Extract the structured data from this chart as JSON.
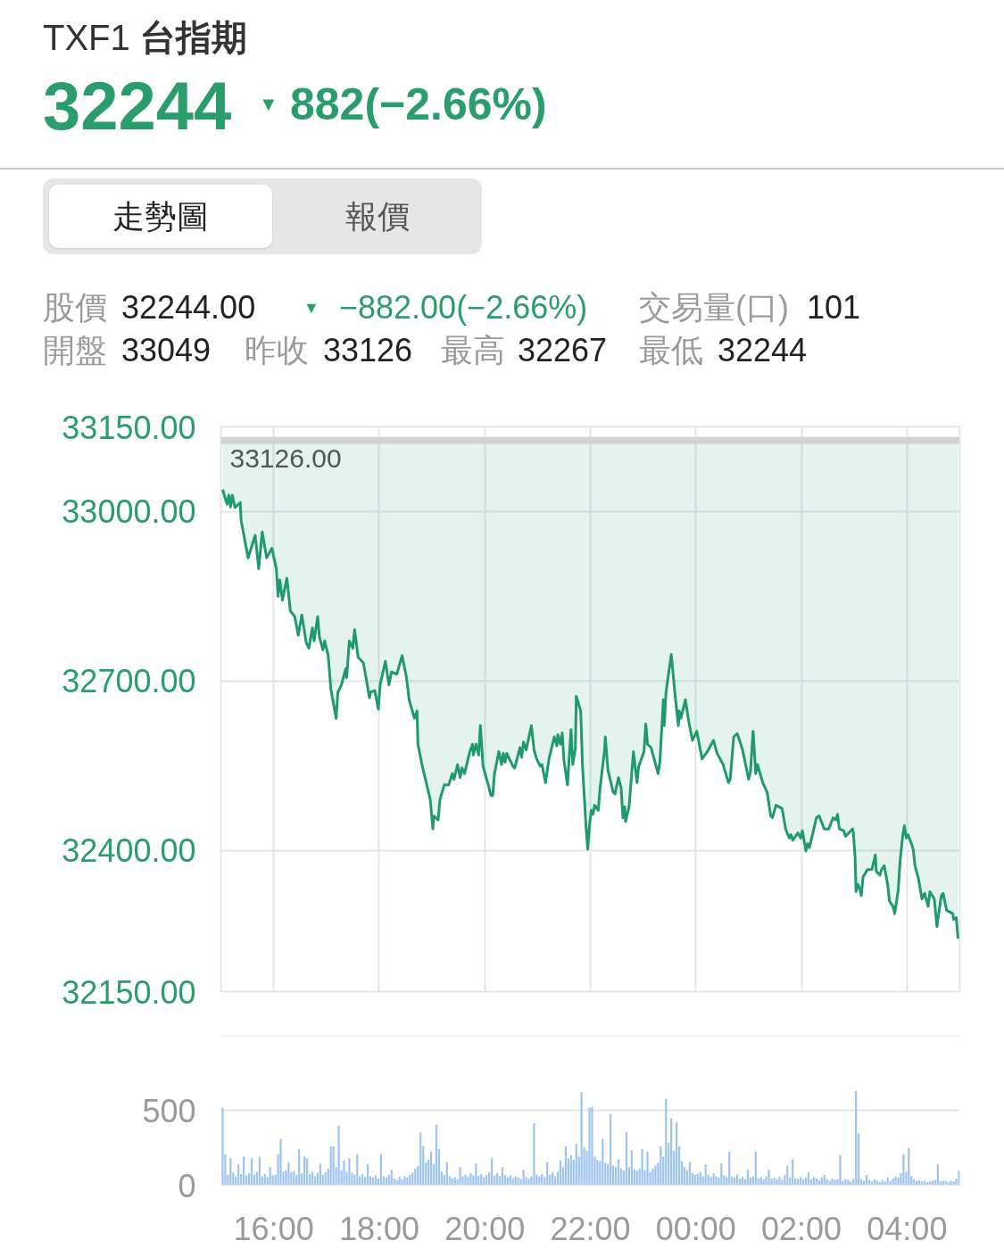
{
  "chart_data": [
    {
      "type": "line",
      "title": "TXF1 台指期",
      "annotations": [
        "32244",
        "▼",
        "882(−2.66%)",
        "走勢圖",
        "報價",
        "股價",
        "32244.00",
        "▼",
        "−882.00(−2.66%)",
        "交易量(口)",
        "101",
        "開盤",
        "33049",
        "昨收",
        "33126",
        "最高",
        "32267",
        "最低",
        "32244"
      ],
      "x": [
        "2000-01-01T15:02",
        "2000-01-01T15:07",
        "2000-01-01T15:09",
        "2000-01-01T15:11",
        "2000-01-01T15:13",
        "2000-01-01T15:16",
        "2000-01-01T15:22",
        "2000-01-01T15:23",
        "2000-01-01T15:31",
        "2000-01-01T15:39",
        "2000-01-01T15:43",
        "2000-01-01T15:47",
        "2000-01-01T15:52",
        "2000-01-01T15:58",
        "2000-01-01T16:03",
        "2000-01-01T16:05",
        "2000-01-01T16:07",
        "2000-01-01T16:10",
        "2000-01-01T16:15",
        "2000-01-01T16:19",
        "2000-01-01T16:24",
        "2000-01-01T16:28",
        "2000-01-01T16:32",
        "2000-01-01T16:37",
        "2000-01-01T16:40",
        "2000-01-01T16:44",
        "2000-01-01T16:46",
        "2000-01-01T16:50",
        "2000-01-01T16:52",
        "2000-01-01T16:56",
        "2000-01-01T16:58",
        "2000-01-01T17:02",
        "2000-01-01T17:05",
        "2000-01-01T17:11",
        "2000-01-01T17:13",
        "2000-01-01T17:17",
        "2000-01-01T17:22",
        "2000-01-01T17:23",
        "2000-01-01T17:26",
        "2000-01-01T17:30",
        "2000-01-01T17:32",
        "2000-01-01T17:36",
        "2000-01-01T17:42",
        "2000-01-01T17:49",
        "2000-01-01T17:50",
        "2000-01-01T17:55",
        "2000-01-01T17:59",
        "2000-01-01T18:01",
        "2000-01-01T18:07",
        "2000-01-01T18:11",
        "2000-01-01T18:14",
        "2000-01-01T18:20",
        "2000-01-01T18:26",
        "2000-01-01T18:31",
        "2000-01-01T18:34",
        "2000-01-01T18:40",
        "2000-01-01T18:43",
        "2000-01-01T18:44",
        "2000-01-01T18:49",
        "2000-01-01T18:55",
        "2000-01-01T18:58",
        "2000-01-01T19:01",
        "2000-01-01T19:02",
        "2000-01-01T19:07",
        "2000-01-01T19:09",
        "2000-01-01T19:14",
        "2000-01-01T19:19",
        "2000-01-01T19:23",
        "2000-01-01T19:25",
        "2000-01-01T19:29",
        "2000-01-01T19:32",
        "2000-01-01T19:34",
        "2000-01-01T19:37",
        "2000-01-01T19:43",
        "2000-01-01T19:46",
        "2000-01-01T19:47",
        "2000-01-01T19:50",
        "2000-01-01T19:53",
        "2000-01-01T19:55",
        "2000-01-01T19:58",
        "2000-01-01T20:04",
        "2000-01-01T20:07",
        "2000-01-01T20:09",
        "2000-01-01T20:11",
        "2000-01-01T20:16",
        "2000-01-01T20:19",
        "2000-01-01T20:21",
        "2000-01-01T20:23",
        "2000-01-01T20:25",
        "2000-01-01T20:32",
        "2000-01-01T20:34",
        "2000-01-01T20:40",
        "2000-01-01T20:42",
        "2000-01-01T20:44",
        "2000-01-01T20:47",
        "2000-01-01T20:53",
        "2000-01-01T20:56",
        "2000-01-01T20:59",
        "2000-01-01T21:03",
        "2000-01-01T21:05",
        "2000-01-01T21:09",
        "2000-01-01T21:13",
        "2000-01-01T21:17",
        "2000-01-01T21:19",
        "2000-01-01T21:22",
        "2000-01-01T21:23",
        "2000-01-01T21:26",
        "2000-01-01T21:28",
        "2000-01-01T21:30",
        "2000-01-01T21:34",
        "2000-01-01T21:38",
        "2000-01-01T21:40",
        "2000-01-01T21:43",
        "2000-01-01T21:44",
        "2000-01-01T21:49",
        "2000-01-01T21:51",
        "2000-01-01T21:55",
        "2000-01-01T21:57",
        "2000-01-01T21:59",
        "2000-01-01T22:01",
        "2000-01-01T22:03",
        "2000-01-01T22:05",
        "2000-01-01T22:09",
        "2000-01-01T22:11",
        "2000-01-01T22:16",
        "2000-01-01T22:17",
        "2000-01-01T22:20",
        "2000-01-01T22:26",
        "2000-01-01T22:28",
        "2000-01-01T22:32",
        "2000-01-01T22:35",
        "2000-01-01T22:37",
        "2000-01-01T22:39",
        "2000-01-01T22:40",
        "2000-01-01T22:44",
        "2000-01-01T22:49",
        "2000-01-01T22:53",
        "2000-01-01T22:55",
        "2000-01-01T23:01",
        "2000-01-01T23:03",
        "2000-01-01T23:05",
        "2000-01-01T23:09",
        "2000-01-01T23:17",
        "2000-01-01T23:19",
        "2000-01-01T23:23",
        "2000-01-01T23:24",
        "2000-01-01T23:26",
        "2000-01-01T23:32",
        "2000-01-01T23:36",
        "2000-01-01T23:40",
        "2000-01-01T23:41",
        "2000-01-01T23:43",
        "2000-01-01T23:48",
        "2000-01-01T23:52",
        "2000-01-01T23:56",
        "2000-01-02T00:01",
        "2000-01-02T00:07",
        "2000-01-02T00:13",
        "2000-01-02T00:20",
        "2000-01-02T00:24",
        "2000-01-02T00:31",
        "2000-01-02T00:32",
        "2000-01-02T00:37",
        "2000-01-02T00:39",
        "2000-01-02T00:43",
        "2000-01-02T00:47",
        "2000-01-02T00:53",
        "2000-01-02T01:00",
        "2000-01-02T01:02",
        "2000-01-02T01:05",
        "2000-01-02T01:08",
        "2000-01-02T01:10",
        "2000-01-02T01:16",
        "2000-01-02T01:21",
        "2000-01-02T01:25",
        "2000-01-02T01:27",
        "2000-01-02T01:31",
        "2000-01-02T01:38",
        "2000-01-02T01:42",
        "2000-01-02T01:46",
        "2000-01-02T01:48",
        "2000-01-02T01:50",
        "2000-01-02T01:56",
        "2000-01-02T01:59",
        "2000-01-02T02:01",
        "2000-01-02T02:05",
        "2000-01-02T02:07",
        "2000-01-02T02:09",
        "2000-01-02T02:13",
        "2000-01-02T02:17",
        "2000-01-02T02:20",
        "2000-01-02T02:26",
        "2000-01-02T02:31",
        "2000-01-02T02:36",
        "2000-01-02T02:39",
        "2000-01-02T02:41",
        "2000-01-02T02:43",
        "2000-01-02T02:48",
        "2000-01-02T02:50",
        "2000-01-02T02:58",
        "2000-01-02T02:59",
        "2000-01-02T03:01",
        "2000-01-02T03:02",
        "2000-01-02T03:04",
        "2000-01-02T03:06",
        "2000-01-02T03:08",
        "2000-01-02T03:10",
        "2000-01-02T03:15",
        "2000-01-02T03:20",
        "2000-01-02T03:22",
        "2000-01-02T03:24",
        "2000-01-02T03:25",
        "2000-01-02T03:29",
        "2000-01-02T03:31",
        "2000-01-02T03:34",
        "2000-01-02T03:38",
        "2000-01-02T03:40",
        "2000-01-02T03:44",
        "2000-01-02T03:46",
        "2000-01-02T03:50",
        "2000-01-02T03:52",
        "2000-01-02T03:55",
        "2000-01-02T03:57",
        "2000-01-02T03:59",
        "2000-01-02T04:01",
        "2000-01-02T04:05",
        "2000-01-02T04:07",
        "2000-01-02T04:09",
        "2000-01-02T04:13",
        "2000-01-02T04:17",
        "2000-01-02T04:20",
        "2000-01-02T04:24",
        "2000-01-02T04:26",
        "2000-01-02T04:31",
        "2000-01-02T04:34",
        "2000-01-02T04:36",
        "2000-01-02T04:39",
        "2000-01-02T04:41",
        "2000-01-02T04:45",
        "2000-01-02T04:52",
        "2000-01-02T04:53",
        "2000-01-02T04:56",
        "2000-01-02T04:57",
        "2000-01-02T04:58"
      ],
      "series": [
        {
          "type": "line",
          "color": "#1f9a6a",
          "values": [
            33039,
            33013,
            33029,
            33008,
            33029,
            33007,
            33016,
            32984,
            32918,
            32958,
            32899,
            32964,
            32918,
            32935,
            32899,
            32850,
            32879,
            32843,
            32882,
            32824,
            32814,
            32781,
            32817,
            32768,
            32758,
            32794,
            32771,
            32814,
            32778,
            32755,
            32771,
            32745,
            32686,
            32634,
            32680,
            32693,
            32722,
            32706,
            32771,
            32758,
            32791,
            32742,
            32732,
            32670,
            32680,
            32683,
            32650,
            32693,
            32735,
            32693,
            32716,
            32712,
            32745,
            32706,
            32667,
            32634,
            32647,
            32588,
            32549,
            32510,
            32490,
            32438,
            32461,
            32454,
            32490,
            32516,
            32516,
            32536,
            32526,
            32552,
            32529,
            32546,
            32536,
            32575,
            32588,
            32569,
            32588,
            32569,
            32621,
            32549,
            32516,
            32497,
            32497,
            32536,
            32575,
            32552,
            32572,
            32556,
            32572,
            32549,
            32546,
            32582,
            32565,
            32592,
            32578,
            32621,
            32578,
            32562,
            32549,
            32552,
            32520,
            32562,
            32588,
            32601,
            32585,
            32605,
            32588,
            32608,
            32559,
            32516,
            32614,
            32552,
            32582,
            32673,
            32647,
            32552,
            32444,
            32402,
            32444,
            32471,
            32464,
            32480,
            32471,
            32510,
            32575,
            32601,
            32542,
            32503,
            32500,
            32529,
            32510,
            32458,
            32477,
            32451,
            32477,
            32575,
            32520,
            32549,
            32575,
            32624,
            32588,
            32582,
            32536,
            32556,
            32667,
            32621,
            32680,
            32747,
            32680,
            32621,
            32647,
            32634,
            32667,
            32627,
            32595,
            32611,
            32562,
            32575,
            32595,
            32572,
            32552,
            32546,
            32520,
            32526,
            32601,
            32607,
            32578,
            32526,
            32539,
            32611,
            32536,
            32552,
            32520,
            32503,
            32461,
            32458,
            32480,
            32474,
            32438,
            32422,
            32428,
            32418,
            32431,
            32422,
            32435,
            32399,
            32412,
            32405,
            32431,
            32458,
            32461,
            32438,
            32438,
            32458,
            32454,
            32464,
            32438,
            32435,
            32425,
            32438,
            32431,
            32386,
            32327,
            32340,
            32333,
            32320,
            32353,
            32366,
            32366,
            32379,
            32392,
            32363,
            32356,
            32366,
            32373,
            32340,
            32310,
            32301,
            32288,
            32330,
            32379,
            32425,
            32444,
            32422,
            32428,
            32412,
            32402,
            32373,
            32350,
            32314,
            32324,
            32301,
            32327,
            32314,
            32265,
            32288,
            32320,
            32324,
            32294,
            32288,
            32278,
            32281,
            32261,
            32244
          ],
          "lower": [
            33039,
            33013,
            33029,
            33008,
            33029,
            33007,
            33016,
            32984,
            32918,
            32958,
            32899,
            32964,
            32918,
            32935,
            32899,
            32850,
            32879,
            32843,
            32882,
            32824,
            32814,
            32781,
            32817,
            32768,
            32758,
            32794,
            32771,
            32814,
            32778,
            32755,
            32771,
            32745,
            32686,
            32634,
            32680,
            32693,
            32722,
            32706,
            32771,
            32758,
            32791,
            32742,
            32732,
            32670,
            32680,
            32683,
            32650,
            32693,
            32735,
            32693,
            32716,
            32712,
            32745,
            32706,
            32667,
            32634,
            32647,
            32588,
            32549,
            32510,
            32490,
            32438,
            32461,
            32454,
            32490,
            32516,
            32516,
            32536,
            32526,
            32552,
            32529,
            32546,
            32536,
            32575,
            32588,
            32569,
            32588,
            32569,
            32621,
            32549,
            32516,
            32497,
            32497,
            32536,
            32575,
            32552,
            32572,
            32556,
            32572,
            32549,
            32546,
            32582,
            32565,
            32592,
            32578,
            32621,
            32578,
            32562,
            32549,
            32552,
            32520,
            32562,
            32588,
            32601,
            32585,
            32605,
            32588,
            32608,
            32559,
            32516,
            32614,
            32552,
            32582,
            32673,
            32647,
            32552,
            32444,
            32402,
            32444,
            32471,
            32464,
            32480,
            32471,
            32510,
            32575,
            32601,
            32542,
            32503,
            32500,
            32529,
            32510,
            32458,
            32477,
            32451,
            32477,
            32575,
            32520,
            32549,
            32575,
            32624,
            32588,
            32582,
            32536,
            32556,
            32667,
            32621,
            32680,
            32747,
            32680,
            32621,
            32647,
            32634,
            32667,
            32627,
            32595,
            32611,
            32562,
            32575,
            32595,
            32572,
            32552,
            32546,
            32520,
            32526,
            32601,
            32607,
            32578,
            32526,
            32539,
            32611,
            32536,
            32552,
            32520,
            32503,
            32461,
            32458,
            32480,
            32474,
            32438,
            32422,
            32428,
            32418,
            32431,
            32422,
            32435,
            32399,
            32412,
            32405,
            32431,
            32458,
            32461,
            32438,
            32438,
            32458,
            32454,
            32464,
            32438,
            32435,
            32425,
            32438,
            32431,
            32386,
            32327,
            32340,
            32333,
            32320,
            32353,
            32366,
            32366,
            32379,
            32392,
            32363,
            32356,
            32366,
            32373,
            32340,
            32310,
            32301,
            32288,
            32330,
            32379,
            32425,
            32444,
            32422,
            32428,
            32412,
            32402,
            32373,
            32350,
            32314,
            32324,
            32301,
            32327,
            32314,
            32265,
            32288,
            32320,
            32324,
            32294,
            32288,
            32278,
            32281,
            32261,
            32244
          ],
          "upper": [
            33126,
            33126,
            33126,
            33126,
            33126,
            33126,
            33126,
            33126,
            33126,
            33126,
            33126,
            33126,
            33126,
            33126,
            33126,
            33126,
            33126,
            33126,
            33126,
            33126,
            33126,
            33126,
            33126,
            33126,
            33126,
            33126,
            33126,
            33126,
            33126,
            33126,
            33126,
            33126,
            33126,
            33126,
            33126,
            33126,
            33126,
            33126,
            33126,
            33126,
            33126,
            33126,
            33126,
            33126,
            33126,
            33126,
            33126,
            33126,
            33126,
            33126,
            33126,
            33126,
            33126,
            33126,
            33126,
            33126,
            33126,
            33126,
            33126,
            33126,
            33126,
            33126,
            33126,
            33126,
            33126,
            33126,
            33126,
            33126,
            33126,
            33126,
            33126,
            33126,
            33126,
            33126,
            33126,
            33126,
            33126,
            33126,
            33126,
            33126,
            33126,
            33126,
            33126,
            33126,
            33126,
            33126,
            33126,
            33126,
            33126,
            33126,
            33126,
            33126,
            33126,
            33126,
            33126,
            33126,
            33126,
            33126,
            33126,
            33126,
            33126,
            33126,
            33126,
            33126,
            33126,
            33126,
            33126,
            33126,
            33126,
            33126,
            33126,
            33126,
            33126,
            33126,
            33126,
            33126,
            33126,
            33126,
            33126,
            33126,
            33126,
            33126,
            33126,
            33126,
            33126,
            33126,
            33126,
            33126,
            33126,
            33126,
            33126,
            33126,
            33126,
            33126,
            33126,
            33126,
            33126,
            33126,
            33126,
            33126,
            33126,
            33126,
            33126,
            33126,
            33126,
            33126,
            33126,
            33126,
            33126,
            33126,
            33126,
            33126,
            33126,
            33126,
            33126,
            33126,
            33126,
            33126,
            33126,
            33126,
            33126,
            33126,
            33126,
            33126,
            33126,
            33126,
            33126,
            33126,
            33126,
            33126,
            33126,
            33126,
            33126,
            33126,
            33126,
            33126,
            33126,
            33126,
            33126,
            33126,
            33126,
            33126,
            33126,
            33126,
            33126,
            33126,
            33126,
            33126,
            33126,
            33126,
            33126,
            33126,
            33126,
            33126,
            33126,
            33126,
            33126,
            33126,
            33126,
            33126,
            33126,
            33126,
            33126,
            33126,
            33126,
            33126,
            33126,
            33126,
            33126,
            33126,
            33126,
            33126,
            33126,
            33126,
            33126,
            33126,
            33126,
            33126,
            33126,
            33126,
            33126,
            33126,
            33126,
            33126,
            33126,
            33126,
            33126,
            33126,
            33126,
            33126,
            33126,
            33126,
            33126,
            33126,
            33126,
            33126,
            33126,
            33126,
            33126,
            33126,
            33126,
            33126,
            33126,
            33126
          ]
        }
      ],
      "xlim": [
        "2000-01-01T15:00",
        "2000-01-02T05:00"
      ],
      "xticks": [
        {
          "value": "2000-01-01T16:00",
          "label": null
        },
        {
          "value": "2000-01-01T18:00",
          "label": null
        },
        {
          "value": "2000-01-01T20:00",
          "label": null
        },
        {
          "value": "2000-01-01T22:00",
          "label": null
        },
        {
          "value": "2000-01-02T00:00",
          "label": null
        },
        {
          "value": "2000-01-02T02:00",
          "label": null
        },
        {
          "value": "2000-01-02T04:00",
          "label": null
        }
      ],
      "ylim": [
        32150,
        33150
      ],
      "yticks": [
        {
          "value": 32150,
          "label": "32150.00"
        },
        {
          "value": 32400,
          "label": "32400.00"
        },
        {
          "value": 32700,
          "label": "32700.00"
        },
        {
          "value": 33000,
          "label": "33000.00"
        },
        {
          "value": 33150,
          "label": "33150.00"
        }
      ],
      "ref_lines": [
        {
          "axis": "y",
          "value": 33126,
          "label": "33126.00",
          "color": "#d3d3d3"
        }
      ],
      "grid": true,
      "tick_labels": "y"
    },
    {
      "type": "bar",
      "x": [
        "2000-01-01T15:02",
        "2000-01-01T15:05",
        "2000-01-01T15:08",
        "2000-01-01T15:11",
        "2000-01-01T15:14",
        "2000-01-01T15:17",
        "2000-01-01T15:20",
        "2000-01-01T15:23",
        "2000-01-01T15:26",
        "2000-01-01T15:29",
        "2000-01-01T15:32",
        "2000-01-01T15:35",
        "2000-01-01T15:38",
        "2000-01-01T15:41",
        "2000-01-01T15:44",
        "2000-01-01T15:47",
        "2000-01-01T15:50",
        "2000-01-01T15:53",
        "2000-01-01T15:56",
        "2000-01-01T15:59",
        "2000-01-01T16:02",
        "2000-01-01T16:05",
        "2000-01-01T16:08",
        "2000-01-01T16:11",
        "2000-01-01T16:14",
        "2000-01-01T16:17",
        "2000-01-01T16:20",
        "2000-01-01T16:23",
        "2000-01-01T16:26",
        "2000-01-01T16:29",
        "2000-01-01T16:32",
        "2000-01-01T16:35",
        "2000-01-01T16:38",
        "2000-01-01T16:41",
        "2000-01-01T16:44",
        "2000-01-01T16:47",
        "2000-01-01T16:50",
        "2000-01-01T16:53",
        "2000-01-01T16:56",
        "2000-01-01T16:59",
        "2000-01-01T17:02",
        "2000-01-01T17:05",
        "2000-01-01T17:08",
        "2000-01-01T17:11",
        "2000-01-01T17:14",
        "2000-01-01T17:17",
        "2000-01-01T17:20",
        "2000-01-01T17:23",
        "2000-01-01T17:26",
        "2000-01-01T17:29",
        "2000-01-01T17:32",
        "2000-01-01T17:35",
        "2000-01-01T17:38",
        "2000-01-01T17:41",
        "2000-01-01T17:44",
        "2000-01-01T17:47",
        "2000-01-01T17:50",
        "2000-01-01T17:53",
        "2000-01-01T17:56",
        "2000-01-01T17:59",
        "2000-01-01T18:02",
        "2000-01-01T18:05",
        "2000-01-01T18:08",
        "2000-01-01T18:11",
        "2000-01-01T18:14",
        "2000-01-01T18:17",
        "2000-01-01T18:20",
        "2000-01-01T18:23",
        "2000-01-01T18:26",
        "2000-01-01T18:29",
        "2000-01-01T18:32",
        "2000-01-01T18:35",
        "2000-01-01T18:38",
        "2000-01-01T18:41",
        "2000-01-01T18:44",
        "2000-01-01T18:47",
        "2000-01-01T18:50",
        "2000-01-01T18:53",
        "2000-01-01T18:56",
        "2000-01-01T18:59",
        "2000-01-01T19:02",
        "2000-01-01T19:05",
        "2000-01-01T19:08",
        "2000-01-01T19:11",
        "2000-01-01T19:14",
        "2000-01-01T19:17",
        "2000-01-01T19:20",
        "2000-01-01T19:23",
        "2000-01-01T19:26",
        "2000-01-01T19:29",
        "2000-01-01T19:32",
        "2000-01-01T19:35",
        "2000-01-01T19:38",
        "2000-01-01T19:41",
        "2000-01-01T19:44",
        "2000-01-01T19:47",
        "2000-01-01T19:50",
        "2000-01-01T19:53",
        "2000-01-01T19:56",
        "2000-01-01T19:59",
        "2000-01-01T20:02",
        "2000-01-01T20:05",
        "2000-01-01T20:08",
        "2000-01-01T20:11",
        "2000-01-01T20:14",
        "2000-01-01T20:17",
        "2000-01-01T20:20",
        "2000-01-01T20:23",
        "2000-01-01T20:26",
        "2000-01-01T20:29",
        "2000-01-01T20:32",
        "2000-01-01T20:35",
        "2000-01-01T20:38",
        "2000-01-01T20:41",
        "2000-01-01T20:44",
        "2000-01-01T20:47",
        "2000-01-01T20:50",
        "2000-01-01T20:53",
        "2000-01-01T20:56",
        "2000-01-01T20:59",
        "2000-01-01T21:02",
        "2000-01-01T21:05",
        "2000-01-01T21:08",
        "2000-01-01T21:11",
        "2000-01-01T21:14",
        "2000-01-01T21:17",
        "2000-01-01T21:20",
        "2000-01-01T21:23",
        "2000-01-01T21:26",
        "2000-01-01T21:29",
        "2000-01-01T21:32",
        "2000-01-01T21:35",
        "2000-01-01T21:38",
        "2000-01-01T21:41",
        "2000-01-01T21:44",
        "2000-01-01T21:47",
        "2000-01-01T21:50",
        "2000-01-01T21:53",
        "2000-01-01T21:56",
        "2000-01-01T21:59",
        "2000-01-01T22:02",
        "2000-01-01T22:05",
        "2000-01-01T22:08",
        "2000-01-01T22:11",
        "2000-01-01T22:14",
        "2000-01-01T22:17",
        "2000-01-01T22:20",
        "2000-01-01T22:23",
        "2000-01-01T22:26",
        "2000-01-01T22:29",
        "2000-01-01T22:32",
        "2000-01-01T22:35",
        "2000-01-01T22:38",
        "2000-01-01T22:41",
        "2000-01-01T22:44",
        "2000-01-01T22:47",
        "2000-01-01T22:50",
        "2000-01-01T22:53",
        "2000-01-01T22:56",
        "2000-01-01T22:59",
        "2000-01-01T23:02",
        "2000-01-01T23:05",
        "2000-01-01T23:08",
        "2000-01-01T23:11",
        "2000-01-01T23:14",
        "2000-01-01T23:17",
        "2000-01-01T23:20",
        "2000-01-01T23:23",
        "2000-01-01T23:26",
        "2000-01-01T23:29",
        "2000-01-01T23:32",
        "2000-01-01T23:35",
        "2000-01-01T23:38",
        "2000-01-01T23:41",
        "2000-01-01T23:44",
        "2000-01-01T23:47",
        "2000-01-01T23:50",
        "2000-01-01T23:53",
        "2000-01-01T23:56",
        "2000-01-01T23:59",
        "2000-01-02T00:02",
        "2000-01-02T00:05",
        "2000-01-02T00:08",
        "2000-01-02T00:11",
        "2000-01-02T00:14",
        "2000-01-02T00:17",
        "2000-01-02T00:20",
        "2000-01-02T00:23",
        "2000-01-02T00:26",
        "2000-01-02T00:29",
        "2000-01-02T00:32",
        "2000-01-02T00:35",
        "2000-01-02T00:38",
        "2000-01-02T00:41",
        "2000-01-02T00:44",
        "2000-01-02T00:47",
        "2000-01-02T00:50",
        "2000-01-02T00:53",
        "2000-01-02T00:56",
        "2000-01-02T00:59",
        "2000-01-02T01:02",
        "2000-01-02T01:05",
        "2000-01-02T01:08",
        "2000-01-02T01:11",
        "2000-01-02T01:14",
        "2000-01-02T01:17",
        "2000-01-02T01:20",
        "2000-01-02T01:23",
        "2000-01-02T01:26",
        "2000-01-02T01:29",
        "2000-01-02T01:32",
        "2000-01-02T01:35",
        "2000-01-02T01:38",
        "2000-01-02T01:41",
        "2000-01-02T01:44",
        "2000-01-02T01:47",
        "2000-01-02T01:50",
        "2000-01-02T01:53",
        "2000-01-02T01:56",
        "2000-01-02T01:59",
        "2000-01-02T02:02",
        "2000-01-02T02:05",
        "2000-01-02T02:08",
        "2000-01-02T02:11",
        "2000-01-02T02:14",
        "2000-01-02T02:17",
        "2000-01-02T02:20",
        "2000-01-02T02:23",
        "2000-01-02T02:26",
        "2000-01-02T02:29",
        "2000-01-02T02:32",
        "2000-01-02T02:35",
        "2000-01-02T02:38",
        "2000-01-02T02:41",
        "2000-01-02T02:44",
        "2000-01-02T02:47",
        "2000-01-02T02:50",
        "2000-01-02T02:53",
        "2000-01-02T02:56",
        "2000-01-02T02:59",
        "2000-01-02T03:02",
        "2000-01-02T03:05",
        "2000-01-02T03:08",
        "2000-01-02T03:11",
        "2000-01-02T03:14",
        "2000-01-02T03:17",
        "2000-01-02T03:20",
        "2000-01-02T03:23",
        "2000-01-02T03:26",
        "2000-01-02T03:29",
        "2000-01-02T03:32",
        "2000-01-02T03:35",
        "2000-01-02T03:38",
        "2000-01-02T03:41",
        "2000-01-02T03:44",
        "2000-01-02T03:47",
        "2000-01-02T03:50",
        "2000-01-02T03:53",
        "2000-01-02T03:56",
        "2000-01-02T03:59",
        "2000-01-02T04:02",
        "2000-01-02T04:05",
        "2000-01-02T04:08",
        "2000-01-02T04:11",
        "2000-01-02T04:14",
        "2000-01-02T04:17",
        "2000-01-02T04:20",
        "2000-01-02T04:23",
        "2000-01-02T04:26",
        "2000-01-02T04:29",
        "2000-01-02T04:32",
        "2000-01-02T04:35",
        "2000-01-02T04:38",
        "2000-01-02T04:41",
        "2000-01-02T04:44",
        "2000-01-02T04:47",
        "2000-01-02T04:50",
        "2000-01-02T04:53",
        "2000-01-02T04:56",
        "2000-01-02T04:59"
      ],
      "values": [
        517,
        207,
        70,
        180,
        85,
        60,
        138,
        75,
        190,
        65,
        80,
        180,
        70,
        90,
        190,
        60,
        75,
        55,
        121,
        65,
        70,
        207,
        310,
        90,
        100,
        155,
        85,
        95,
        70,
        241,
        80,
        190,
        180,
        75,
        90,
        60,
        80,
        145,
        70,
        85,
        110,
        259,
        259,
        120,
        397,
        100,
        165,
        90,
        180,
        85,
        70,
        207,
        60,
        75,
        55,
        138,
        60,
        50,
        65,
        45,
        207,
        60,
        50,
        70,
        103,
        45,
        35,
        55,
        40,
        60,
        50,
        70,
        86,
        110,
        130,
        352,
        259,
        150,
        170,
        224,
        140,
        403,
        241,
        90,
        70,
        155,
        60,
        45,
        55,
        40,
        121,
        60,
        70,
        55,
        80,
        65,
        145,
        60,
        75,
        55,
        70,
        85,
        180,
        65,
        80,
        60,
        121,
        70,
        55,
        65,
        45,
        60,
        50,
        40,
        103,
        55,
        45,
        60,
        414,
        70,
        60,
        75,
        55,
        155,
        70,
        85,
        60,
        90,
        165,
        120,
        259,
        180,
        200,
        170,
        276,
        190,
        621,
        252,
        230,
        517,
        524,
        190,
        170,
        160,
        310,
        150,
        140,
        476,
        130,
        120,
        172,
        110,
        100,
        352,
        120,
        234,
        105,
        95,
        110,
        241,
        100,
        224,
        90,
        110,
        130,
        150,
        259,
        190,
        576,
        283,
        448,
        230,
        421,
        259,
        160,
        120,
        100,
        155,
        80,
        70,
        75,
        90,
        60,
        138,
        70,
        55,
        80,
        60,
        50,
        145,
        65,
        55,
        224,
        60,
        50,
        70,
        45,
        55,
        40,
        103,
        50,
        60,
        224,
        45,
        55,
        40,
        60,
        103,
        45,
        50,
        40,
        55,
        35,
        70,
        131,
        50,
        172,
        45,
        40,
        55,
        40,
        50,
        86,
        40,
        55,
        45,
        35,
        50,
        69,
        40,
        30,
        45,
        35,
        40,
        200,
        30,
        40,
        35,
        25,
        45,
        628,
        345,
        40,
        30,
        69,
        35,
        25,
        40,
        30,
        20,
        35,
        25,
        52,
        30,
        45,
        60,
        50,
        80,
        207,
        90,
        248,
        60,
        40,
        30,
        34,
        25,
        30,
        20,
        25,
        30,
        35,
        138,
        25,
        30,
        28,
        20,
        30,
        25,
        45,
        97
      ],
      "color": "#9dc4ee",
      "xlim": [
        "2000-01-01T15:00",
        "2000-01-02T05:00"
      ],
      "xticks": [
        {
          "value": "2000-01-01T16:00",
          "label": "16:00"
        },
        {
          "value": "2000-01-01T18:00",
          "label": "18:00"
        },
        {
          "value": "2000-01-01T20:00",
          "label": "20:00"
        },
        {
          "value": "2000-01-01T22:00",
          "label": "22:00"
        },
        {
          "value": "2000-01-02T00:00",
          "label": "00:00"
        },
        {
          "value": "2000-01-02T02:00",
          "label": "02:00"
        },
        {
          "value": "2000-01-02T04:00",
          "label": "04:00"
        }
      ],
      "ylim": [
        0,
        1000
      ],
      "yticks": [
        0,
        500,
        {
          "value": 1000,
          "label": null
        }
      ],
      "grid": "y"
    }
  ]
}
